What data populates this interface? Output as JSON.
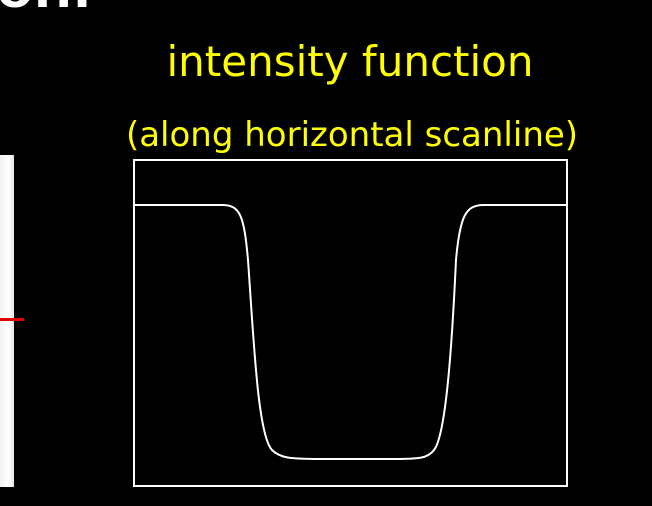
{
  "slide": {
    "heading_fragment": "on:",
    "title_line_1": "intensity function",
    "title_line_2": "(along horizontal scanline)"
  },
  "colors": {
    "background": "#000000",
    "title": "#ffff00",
    "plot_line": "#ffffff",
    "scanline_marker": "#e00000"
  },
  "plot": {
    "curve_shape": "high plateau, smooth drop to low plateau, smooth rise back to high plateau",
    "high_level": 1.0,
    "low_level": 0.0
  }
}
